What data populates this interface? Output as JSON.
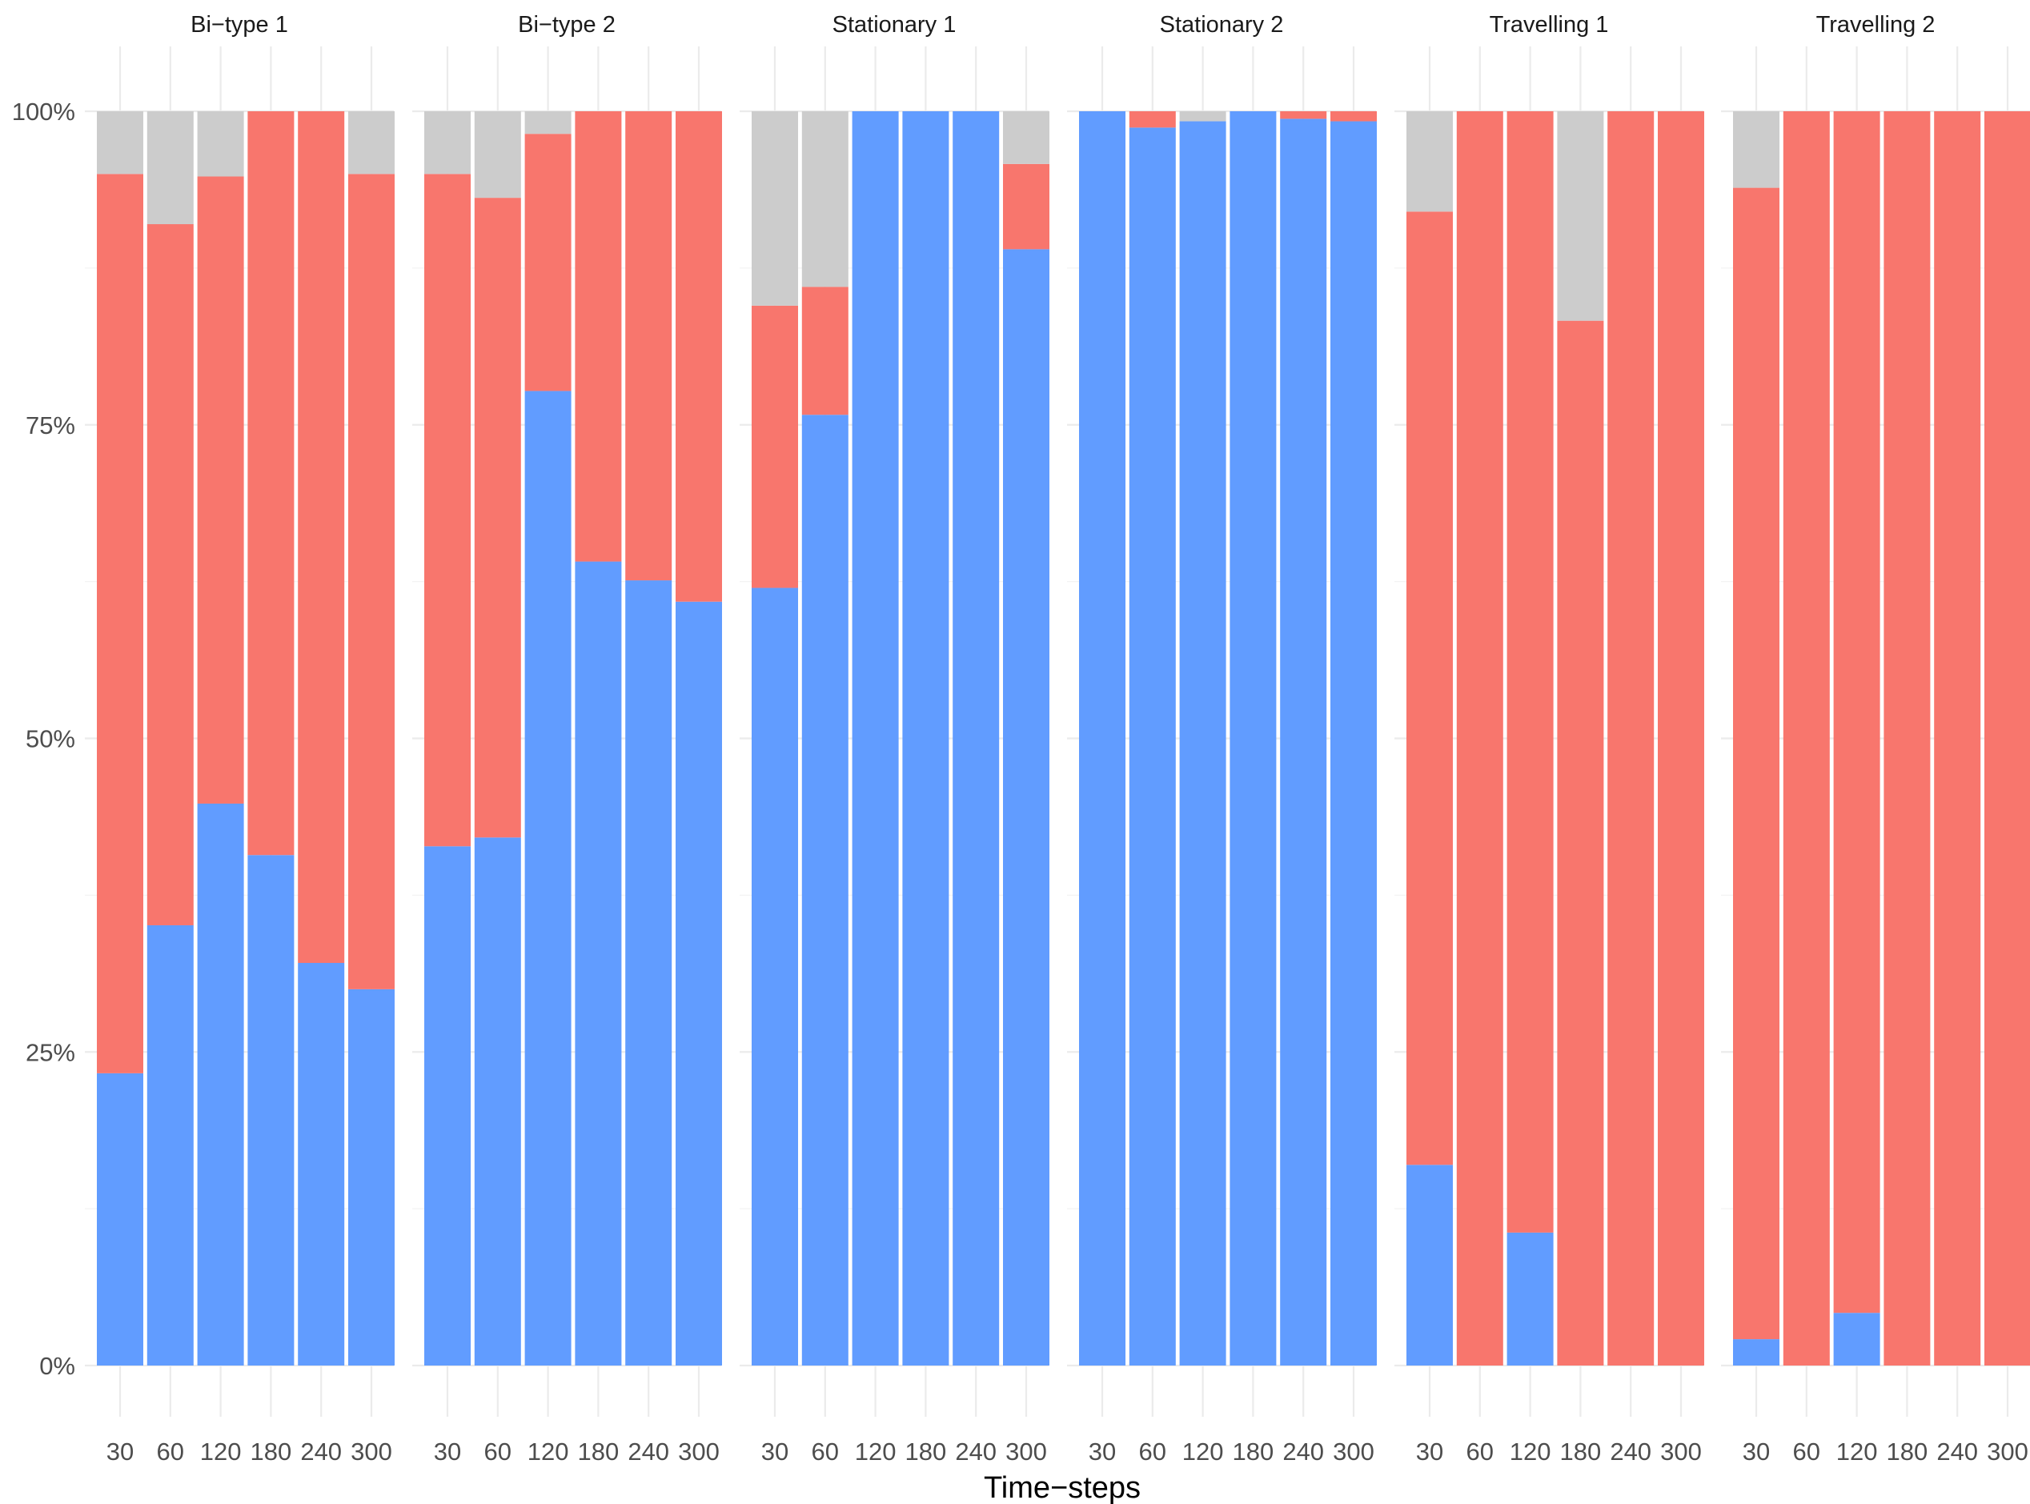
{
  "chart_data": {
    "type": "bar",
    "stacked": true,
    "normalized": true,
    "xlabel": "Time−steps",
    "ylabel": "",
    "ylim": [
      0,
      1
    ],
    "y_ticks": [
      0,
      0.25,
      0.5,
      0.75,
      1.0
    ],
    "y_tick_labels": [
      "0%",
      "25%",
      "50%",
      "75%",
      "100%"
    ],
    "categories": [
      "30",
      "60",
      "120",
      "180",
      "240",
      "300"
    ],
    "colors": {
      "blue": "#619CFF",
      "red": "#F8766D",
      "grey": "#CCCCCC"
    },
    "stack_order": [
      "blue",
      "red",
      "grey"
    ],
    "grid": true,
    "facets": [
      {
        "title": "Bi−type 1",
        "blue": [
          0.233,
          0.351,
          0.448,
          0.407,
          0.321,
          0.3
        ],
        "red": [
          0.717,
          0.559,
          0.5,
          0.593,
          0.679,
          0.65
        ],
        "grey": [
          0.05,
          0.09,
          0.052,
          0.0,
          0.0,
          0.05
        ]
      },
      {
        "title": "Bi−type 2",
        "blue": [
          0.414,
          0.421,
          0.777,
          0.641,
          0.626,
          0.609
        ],
        "red": [
          0.536,
          0.51,
          0.205,
          0.359,
          0.374,
          0.391
        ],
        "grey": [
          0.05,
          0.069,
          0.018,
          0.0,
          0.0,
          0.0
        ]
      },
      {
        "title": "Stationary 1",
        "blue": [
          0.62,
          0.758,
          1.0,
          1.0,
          1.0,
          0.89
        ],
        "red": [
          0.225,
          0.102,
          0.0,
          0.0,
          0.0,
          0.068
        ],
        "grey": [
          0.155,
          0.14,
          0.0,
          0.0,
          0.0,
          0.042
        ]
      },
      {
        "title": "Stationary 2",
        "blue": [
          1.0,
          0.987,
          0.992,
          1.0,
          0.994,
          0.992
        ],
        "red": [
          0.0,
          0.013,
          0.0,
          0.0,
          0.006,
          0.008
        ],
        "grey": [
          0.0,
          0.0,
          0.008,
          0.0,
          0.0,
          0.0
        ]
      },
      {
        "title": "Travelling 1",
        "blue": [
          0.16,
          0.0,
          0.106,
          0.0,
          0.0,
          0.0
        ],
        "red": [
          0.76,
          1.0,
          0.894,
          0.833,
          1.0,
          1.0
        ],
        "grey": [
          0.08,
          0.0,
          0.0,
          0.167,
          0.0,
          0.0
        ]
      },
      {
        "title": "Travelling 2",
        "blue": [
          0.021,
          0.0,
          0.042,
          0.0,
          0.0,
          0.0
        ],
        "red": [
          0.918,
          1.0,
          0.958,
          1.0,
          1.0,
          1.0
        ],
        "grey": [
          0.061,
          0.0,
          0.0,
          0.0,
          0.0,
          0.0
        ]
      }
    ]
  }
}
